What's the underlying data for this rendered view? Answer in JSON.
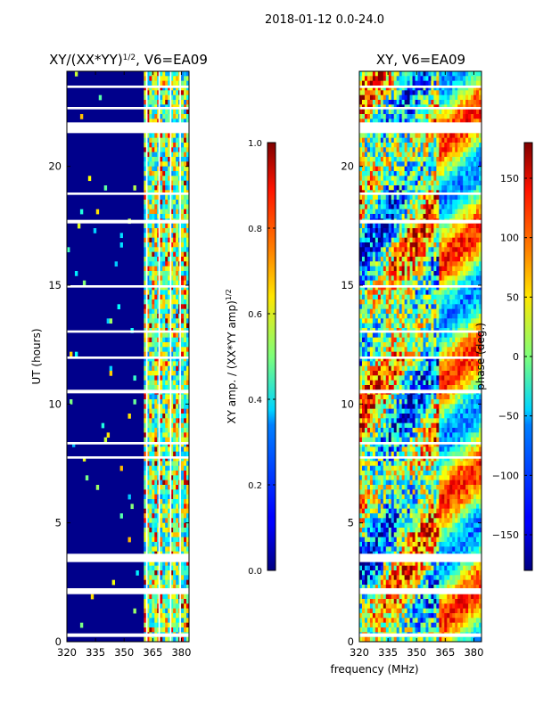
{
  "figure": {
    "suptitle": "2018-01-12 0.0-24.0",
    "shared_xlabel": "frequency (MHz)"
  },
  "chart_data": [
    {
      "type": "heatmap",
      "title": "XY/(XX*YY)",
      "title_exponent": "1/2",
      "title_suffix": ", V6=EA09",
      "xlabel": "",
      "ylabel": "UT (hours)",
      "xlim": [
        320,
        384
      ],
      "ylim": [
        0,
        24
      ],
      "xticks": [
        320,
        335,
        350,
        365,
        380
      ],
      "yticks": [
        0,
        5,
        10,
        15,
        20
      ],
      "rfi_free_band_mhz": [
        320,
        361
      ],
      "active_band_mhz": [
        361,
        384
      ],
      "colormap": "jet",
      "colorbar": {
        "label": "XY amp. / (XX*YY amp)",
        "label_exponent": "1/2",
        "range": [
          0.0,
          1.0
        ],
        "ticks": [
          "0.0",
          "0.2",
          "0.4",
          "0.6",
          "0.8",
          "1.0"
        ],
        "tick_values": [
          0.0,
          0.2,
          0.4,
          0.6,
          0.8,
          1.0
        ]
      },
      "blank_time_bands_hours": [
        [
          0.2,
          0.35
        ],
        [
          2.0,
          2.25
        ],
        [
          3.35,
          3.7
        ],
        [
          7.7,
          7.8
        ],
        [
          8.3,
          8.4
        ],
        [
          10.45,
          10.6
        ],
        [
          11.9,
          12.0
        ],
        [
          13.0,
          13.1
        ],
        [
          14.9,
          15.0
        ],
        [
          17.6,
          17.75
        ],
        [
          18.8,
          18.9
        ],
        [
          21.4,
          21.85
        ],
        [
          22.4,
          22.5
        ],
        [
          23.3,
          23.4
        ]
      ],
      "channel_gap_lines_mhz": [
        361.5,
        368,
        374,
        379
      ]
    },
    {
      "type": "heatmap",
      "title": "XY, V6=EA09",
      "xlabel": "",
      "ylabel": "",
      "xlim": [
        320,
        384
      ],
      "ylim": [
        0,
        24
      ],
      "xticks": [
        320,
        335,
        350,
        365,
        380
      ],
      "yticks": [
        0,
        5,
        10,
        15,
        20
      ],
      "colormap": "jet",
      "colorbar": {
        "label": "phase (deg.)",
        "range": [
          -180,
          180
        ],
        "ticks": [
          "−150",
          "−100",
          "−50",
          "0",
          "50",
          "100",
          "150"
        ],
        "tick_values": [
          -150,
          -100,
          -50,
          0,
          50,
          100,
          150
        ]
      },
      "blank_time_bands_hours": [
        [
          0.2,
          0.35
        ],
        [
          2.0,
          2.25
        ],
        [
          3.35,
          3.7
        ],
        [
          7.7,
          7.8
        ],
        [
          8.3,
          8.4
        ],
        [
          10.45,
          10.6
        ],
        [
          11.9,
          12.0
        ],
        [
          13.0,
          13.1
        ],
        [
          14.9,
          15.0
        ],
        [
          17.6,
          17.75
        ],
        [
          18.8,
          18.9
        ],
        [
          21.4,
          21.85
        ],
        [
          22.4,
          22.5
        ],
        [
          23.3,
          23.4
        ]
      ]
    }
  ],
  "colors": {
    "axes_edge": "#000000",
    "gap": "#ffffff",
    "jet_low": "#00007f",
    "jet_high": "#7f0000"
  }
}
